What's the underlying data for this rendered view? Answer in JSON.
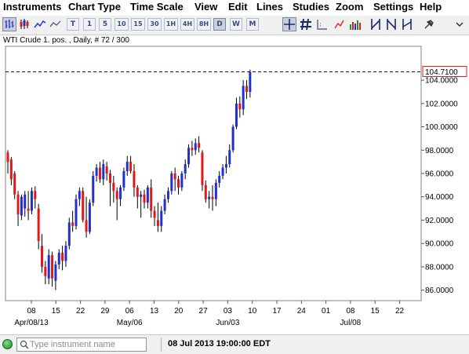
{
  "menu": {
    "items": [
      "Instruments",
      "Chart Type",
      "Time Scale",
      "View",
      "Edit",
      "Lines",
      "Studies",
      "Zoom",
      "Settings",
      "Help"
    ]
  },
  "toolbar": {
    "timeframes": [
      "T",
      "1",
      "5",
      "10",
      "15",
      "30",
      "1H",
      "4H",
      "8H",
      "D",
      "W",
      "M"
    ],
    "active_timeframe": "D"
  },
  "chart": {
    "title": "WTI Crude 1. pos. , Daily, # 72 / 300"
  },
  "chart_data": {
    "type": "candlestick",
    "title": "WTI Crude 1. pos. , Daily, # 72 / 300",
    "y_ticks": [
      "104.0000",
      "102.0000",
      "100.0000",
      "98.0000",
      "96.0000",
      "94.0000",
      "92.0000",
      "90.0000",
      "88.0000",
      "86.0000"
    ],
    "ylim": [
      85.1,
      106.9
    ],
    "x_ticks": [
      "08",
      "15",
      "22",
      "29",
      "06",
      "13",
      "20",
      "27",
      "03",
      "10",
      "17",
      "24",
      "01",
      "08",
      "15",
      "22"
    ],
    "month_labels": [
      "Apr/08/13",
      "May/06",
      "Jun/03",
      "Jul/08"
    ],
    "last_price_label": "104.7100",
    "last_price": 104.71,
    "colors": {
      "up": "#1f2fd0",
      "down": "#e01818",
      "wick": "#000000",
      "price_line": "#0000c0"
    },
    "candles": [
      {
        "o": 97.8,
        "h": 98.0,
        "l": 96.0,
        "c": 97.0
      },
      {
        "o": 97.2,
        "h": 97.4,
        "l": 95.0,
        "c": 95.5
      },
      {
        "o": 96.0,
        "h": 96.2,
        "l": 93.8,
        "c": 94.2
      },
      {
        "o": 94.2,
        "h": 94.5,
        "l": 91.5,
        "c": 92.5
      },
      {
        "o": 92.4,
        "h": 94.2,
        "l": 92.0,
        "c": 94.0
      },
      {
        "o": 93.0,
        "h": 94.5,
        "l": 92.3,
        "c": 94.2
      },
      {
        "o": 93.0,
        "h": 94.5,
        "l": 92.0,
        "c": 92.8
      },
      {
        "o": 92.8,
        "h": 94.8,
        "l": 92.5,
        "c": 94.5
      },
      {
        "o": 94.5,
        "h": 94.9,
        "l": 93.0,
        "c": 93.8
      },
      {
        "o": 93.0,
        "h": 93.4,
        "l": 89.5,
        "c": 90.2
      },
      {
        "o": 89.8,
        "h": 90.8,
        "l": 87.5,
        "c": 88.0
      },
      {
        "o": 88.0,
        "h": 88.5,
        "l": 86.5,
        "c": 87.2
      },
      {
        "o": 87.0,
        "h": 89.5,
        "l": 86.5,
        "c": 89.0
      },
      {
        "o": 89.0,
        "h": 89.3,
        "l": 86.3,
        "c": 87.0
      },
      {
        "o": 86.8,
        "h": 88.5,
        "l": 86.0,
        "c": 88.2
      },
      {
        "o": 88.2,
        "h": 89.5,
        "l": 87.8,
        "c": 89.2
      },
      {
        "o": 89.2,
        "h": 89.8,
        "l": 87.7,
        "c": 88.5
      },
      {
        "o": 88.5,
        "h": 90.2,
        "l": 88.0,
        "c": 89.8
      },
      {
        "o": 89.8,
        "h": 92.2,
        "l": 89.5,
        "c": 91.8
      },
      {
        "o": 91.8,
        "h": 92.8,
        "l": 91.0,
        "c": 91.5
      },
      {
        "o": 91.5,
        "h": 94.2,
        "l": 91.2,
        "c": 93.8
      },
      {
        "o": 93.8,
        "h": 94.8,
        "l": 93.2,
        "c": 94.5
      },
      {
        "o": 94.5,
        "h": 94.8,
        "l": 91.8,
        "c": 92.0
      },
      {
        "o": 92.0,
        "h": 94.0,
        "l": 90.5,
        "c": 91.0
      },
      {
        "o": 91.0,
        "h": 93.8,
        "l": 90.8,
        "c": 93.5
      },
      {
        "o": 93.5,
        "h": 96.2,
        "l": 93.2,
        "c": 95.8
      },
      {
        "o": 95.8,
        "h": 96.8,
        "l": 95.3,
        "c": 96.5
      },
      {
        "o": 96.5,
        "h": 97.0,
        "l": 95.2,
        "c": 95.5
      },
      {
        "o": 95.5,
        "h": 97.2,
        "l": 95.0,
        "c": 96.8
      },
      {
        "o": 96.6,
        "h": 97.0,
        "l": 95.4,
        "c": 96.0
      },
      {
        "o": 96.0,
        "h": 96.3,
        "l": 93.2,
        "c": 95.2
      },
      {
        "o": 95.2,
        "h": 95.8,
        "l": 93.5,
        "c": 94.5
      },
      {
        "o": 94.5,
        "h": 94.8,
        "l": 92.0,
        "c": 93.8
      },
      {
        "o": 93.8,
        "h": 95.0,
        "l": 93.2,
        "c": 94.8
      },
      {
        "o": 94.8,
        "h": 96.5,
        "l": 94.5,
        "c": 96.2
      },
      {
        "o": 96.2,
        "h": 97.5,
        "l": 95.8,
        "c": 97.0
      },
      {
        "o": 97.0,
        "h": 97.5,
        "l": 96.0,
        "c": 96.2
      },
      {
        "o": 96.2,
        "h": 96.8,
        "l": 94.0,
        "c": 94.8
      },
      {
        "o": 94.8,
        "h": 95.0,
        "l": 93.0,
        "c": 94.0
      },
      {
        "o": 94.0,
        "h": 94.5,
        "l": 92.2,
        "c": 94.2
      },
      {
        "o": 94.2,
        "h": 94.6,
        "l": 93.0,
        "c": 93.5
      },
      {
        "o": 93.5,
        "h": 95.0,
        "l": 93.0,
        "c": 94.8
      },
      {
        "o": 94.8,
        "h": 95.5,
        "l": 92.2,
        "c": 92.8
      },
      {
        "o": 92.8,
        "h": 93.2,
        "l": 91.5,
        "c": 92.2
      },
      {
        "o": 92.0,
        "h": 93.5,
        "l": 91.0,
        "c": 91.5
      },
      {
        "o": 91.5,
        "h": 93.2,
        "l": 91.0,
        "c": 92.8
      },
      {
        "o": 92.8,
        "h": 94.2,
        "l": 92.5,
        "c": 93.8
      },
      {
        "o": 93.8,
        "h": 94.8,
        "l": 93.5,
        "c": 94.5
      },
      {
        "o": 94.5,
        "h": 96.2,
        "l": 94.2,
        "c": 96.0
      },
      {
        "o": 96.0,
        "h": 96.5,
        "l": 94.5,
        "c": 95.5
      },
      {
        "o": 95.5,
        "h": 95.8,
        "l": 94.2,
        "c": 94.8
      },
      {
        "o": 94.8,
        "h": 96.2,
        "l": 94.5,
        "c": 96.0
      },
      {
        "o": 96.0,
        "h": 97.2,
        "l": 95.5,
        "c": 96.8
      },
      {
        "o": 96.8,
        "h": 98.5,
        "l": 96.5,
        "c": 98.2
      },
      {
        "o": 98.2,
        "h": 98.8,
        "l": 97.5,
        "c": 98.0
      },
      {
        "o": 98.0,
        "h": 99.0,
        "l": 97.6,
        "c": 98.6
      },
      {
        "o": 98.6,
        "h": 99.2,
        "l": 97.8,
        "c": 98.2
      },
      {
        "o": 97.8,
        "h": 98.0,
        "l": 94.5,
        "c": 95.0
      },
      {
        "o": 95.0,
        "h": 95.4,
        "l": 93.5,
        "c": 93.8
      },
      {
        "o": 93.8,
        "h": 94.5,
        "l": 93.0,
        "c": 94.0
      },
      {
        "o": 94.0,
        "h": 95.0,
        "l": 92.8,
        "c": 93.8
      },
      {
        "o": 93.8,
        "h": 95.5,
        "l": 93.2,
        "c": 95.2
      },
      {
        "o": 95.2,
        "h": 96.2,
        "l": 94.8,
        "c": 95.8
      },
      {
        "o": 95.8,
        "h": 96.8,
        "l": 95.5,
        "c": 96.5
      },
      {
        "o": 96.5,
        "h": 97.5,
        "l": 96.0,
        "c": 96.8
      },
      {
        "o": 96.8,
        "h": 98.5,
        "l": 96.5,
        "c": 98.0
      },
      {
        "o": 98.0,
        "h": 100.2,
        "l": 97.8,
        "c": 100.0
      },
      {
        "o": 100.0,
        "h": 102.5,
        "l": 99.8,
        "c": 102.0
      },
      {
        "o": 102.0,
        "h": 102.6,
        "l": 100.8,
        "c": 101.5
      },
      {
        "o": 101.5,
        "h": 104.0,
        "l": 101.0,
        "c": 103.5
      },
      {
        "o": 103.5,
        "h": 104.0,
        "l": 102.4,
        "c": 103.0
      },
      {
        "o": 103.0,
        "h": 104.9,
        "l": 102.5,
        "c": 104.7
      }
    ]
  },
  "status": {
    "search_placeholder": "Type instrument name",
    "datetime": "08 Jul 2013 19:00:00 EDT"
  }
}
